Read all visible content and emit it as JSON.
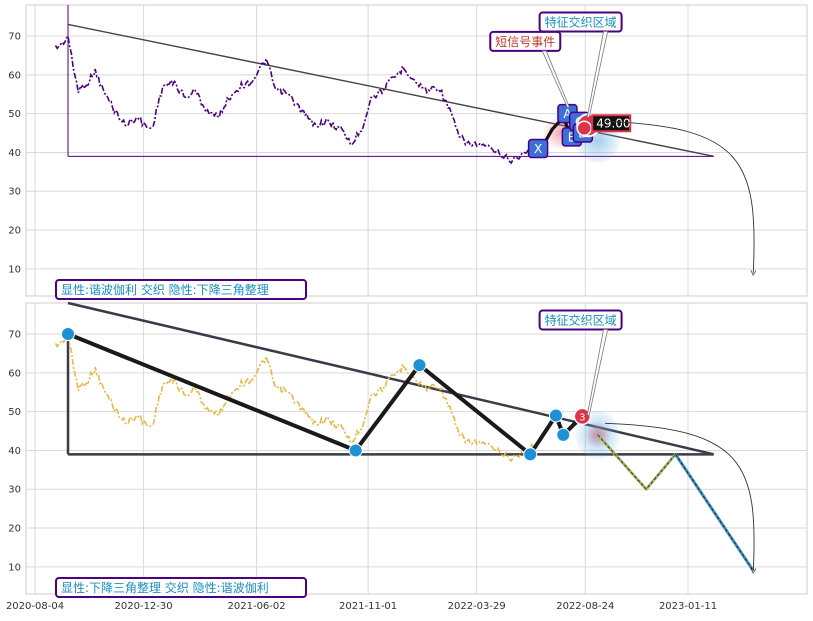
{
  "chart_data": [
    {
      "type": "line",
      "panel": "top",
      "title": "",
      "xlabel": "",
      "ylabel": "",
      "ylim": [
        3,
        78
      ],
      "yticks": [
        10,
        20,
        30,
        40,
        50,
        60,
        70
      ],
      "grid": true,
      "series": [
        {
          "name": "",
          "color": "#4b0082",
          "style": "dash-dot",
          "points": [
            [
              "2020-09-01",
              67
            ],
            [
              "2020-09-10",
              68
            ],
            [
              "2020-09-18",
              70
            ],
            [
              "2020-09-25",
              62
            ],
            [
              "2020-10-02",
              56
            ],
            [
              "2020-10-15",
              58
            ],
            [
              "2020-10-25",
              61
            ],
            [
              "2020-11-05",
              56
            ],
            [
              "2020-11-20",
              51
            ],
            [
              "2020-12-05",
              47
            ],
            [
              "2020-12-20",
              49
            ],
            [
              "2021-01-01",
              47
            ],
            [
              "2021-01-10",
              46
            ],
            [
              "2021-01-25",
              57
            ],
            [
              "2021-02-10",
              58
            ],
            [
              "2021-02-25",
              54
            ],
            [
              "2021-03-10",
              56
            ],
            [
              "2021-03-25",
              51
            ],
            [
              "2021-04-10",
              49
            ],
            [
              "2021-04-25",
              54
            ],
            [
              "2021-05-10",
              57
            ],
            [
              "2021-05-25",
              58
            ],
            [
              "2021-06-05",
              61
            ],
            [
              "2021-06-15",
              64
            ],
            [
              "2021-06-28",
              56
            ],
            [
              "2021-07-15",
              55
            ],
            [
              "2021-08-01",
              51
            ],
            [
              "2021-08-20",
              47
            ],
            [
              "2021-09-05",
              48
            ],
            [
              "2021-09-25",
              46
            ],
            [
              "2021-10-10",
              42
            ],
            [
              "2021-10-25",
              47
            ],
            [
              "2021-11-05",
              54
            ],
            [
              "2021-11-20",
              56
            ],
            [
              "2021-12-05",
              59
            ],
            [
              "2021-12-20",
              62
            ],
            [
              "2022-01-05",
              58
            ],
            [
              "2022-01-20",
              56
            ],
            [
              "2022-02-05",
              57
            ],
            [
              "2022-02-20",
              51
            ],
            [
              "2022-03-05",
              44
            ],
            [
              "2022-03-20",
              42
            ],
            [
              "2022-04-05",
              42
            ],
            [
              "2022-04-25",
              40
            ],
            [
              "2022-05-15",
              38
            ],
            [
              "2022-06-05",
              40
            ],
            [
              "2022-06-25",
              43
            ]
          ]
        },
        {
          "name": "",
          "color": "#111111",
          "style": "solid",
          "points": [
            [
              "2022-06-25",
              41
            ],
            [
              "2022-07-10",
              46
            ],
            [
              "2022-07-25",
              49
            ],
            [
              "2022-08-05",
              44
            ],
            [
              "2022-08-15",
              47
            ],
            [
              "2022-08-25",
              48
            ]
          ]
        }
      ],
      "trend_lines": [
        {
          "color": "#444444",
          "width": 1.4,
          "from": [
            "2020-09-18",
            73
          ],
          "to": [
            "2023-02-15",
            39
          ]
        },
        {
          "color": "#4b0082",
          "width": 1,
          "from": [
            "2020-09-18",
            39
          ],
          "to": [
            "2023-02-15",
            39
          ]
        },
        {
          "color": "#4b0082",
          "width": 1,
          "from": [
            "2020-09-18",
            39
          ],
          "to": [
            "2020-09-18",
            78
          ]
        }
      ],
      "markers": [
        {
          "label": "X",
          "x": "2022-06-20",
          "y": 41
        },
        {
          "label": "A",
          "x": "2022-07-30",
          "y": 50
        },
        {
          "label": "B",
          "x": "2022-08-05",
          "y": 44
        },
        {
          "label": "C",
          "x": "2022-08-15",
          "y": 48
        },
        {
          "label": "D",
          "x": "2022-08-20",
          "y": 45
        }
      ],
      "price_label": "49.00",
      "annotations": [
        {
          "text": "特征交织区域",
          "text_color": "#1a8fbf",
          "x": "2022-07-20",
          "y": 74
        },
        {
          "text": "短信号事件",
          "text_color": "#c0392b",
          "x": "2022-06-10",
          "y": 69
        }
      ],
      "footer_label": "显性:谐波伽利 交织 隐性:下降三角整理"
    },
    {
      "type": "line",
      "panel": "bottom",
      "title": "",
      "xlabel": "",
      "ylabel": "",
      "ylim": [
        3,
        78
      ],
      "yticks": [
        10,
        20,
        30,
        40,
        50,
        60,
        70
      ],
      "grid": true,
      "x_ticks": [
        "2020-08-04",
        "2020-12-30",
        "2021-06-02",
        "2021-11-01",
        "2022-03-29",
        "2022-08-24",
        "2023-01-11"
      ],
      "series": [
        {
          "name": "",
          "color": "#e8b84a",
          "style": "dash-dot",
          "points": [
            [
              "2020-09-01",
              67
            ],
            [
              "2020-09-10",
              68
            ],
            [
              "2020-09-18",
              70
            ],
            [
              "2020-09-25",
              62
            ],
            [
              "2020-10-02",
              56
            ],
            [
              "2020-10-15",
              58
            ],
            [
              "2020-10-25",
              61
            ],
            [
              "2020-11-05",
              56
            ],
            [
              "2020-11-20",
              51
            ],
            [
              "2020-12-05",
              47
            ],
            [
              "2020-12-20",
              49
            ],
            [
              "2021-01-01",
              47
            ],
            [
              "2021-01-10",
              46
            ],
            [
              "2021-01-25",
              57
            ],
            [
              "2021-02-10",
              58
            ],
            [
              "2021-02-25",
              54
            ],
            [
              "2021-03-10",
              56
            ],
            [
              "2021-03-25",
              51
            ],
            [
              "2021-04-10",
              49
            ],
            [
              "2021-04-25",
              54
            ],
            [
              "2021-05-10",
              57
            ],
            [
              "2021-05-25",
              58
            ],
            [
              "2021-06-05",
              61
            ],
            [
              "2021-06-15",
              64
            ],
            [
              "2021-06-28",
              56
            ],
            [
              "2021-07-15",
              55
            ],
            [
              "2021-08-01",
              51
            ],
            [
              "2021-08-20",
              47
            ],
            [
              "2021-09-05",
              48
            ],
            [
              "2021-09-25",
              46
            ],
            [
              "2021-10-10",
              42
            ],
            [
              "2021-10-25",
              47
            ],
            [
              "2021-11-05",
              54
            ],
            [
              "2021-11-20",
              56
            ],
            [
              "2021-12-05",
              59
            ],
            [
              "2021-12-20",
              62
            ],
            [
              "2022-01-05",
              58
            ],
            [
              "2022-01-20",
              56
            ],
            [
              "2022-02-05",
              57
            ],
            [
              "2022-02-20",
              51
            ],
            [
              "2022-03-05",
              44
            ],
            [
              "2022-03-20",
              42
            ],
            [
              "2022-04-05",
              42
            ],
            [
              "2022-04-25",
              40
            ],
            [
              "2022-05-15",
              38
            ],
            [
              "2022-06-05",
              40
            ],
            [
              "2022-06-25",
              43
            ]
          ]
        },
        {
          "name": "",
          "color": "#1a1a1a",
          "style": "solid",
          "points": [
            [
              "2020-09-18",
              70
            ],
            [
              "2021-10-15",
              40
            ],
            [
              "2022-01-10",
              62
            ],
            [
              "2022-06-10",
              39
            ],
            [
              "2022-07-15",
              49
            ],
            [
              "2022-07-25",
              44
            ],
            [
              "2022-08-10",
              47
            ],
            [
              "2022-08-20",
              48
            ]
          ]
        },
        {
          "name": "",
          "color": "#a8b86a",
          "style": "solid",
          "points": [
            [
              "2022-09-10",
              44
            ],
            [
              "2022-11-15",
              30
            ],
            [
              "2022-12-25",
              39
            ]
          ]
        },
        {
          "name": "",
          "color": "#3a8fc0",
          "style": "solid",
          "points": [
            [
              "2022-12-25",
              39
            ],
            [
              "2023-04-10",
              9
            ]
          ]
        }
      ],
      "pivots": [
        {
          "x": "2020-09-18",
          "y": 70
        },
        {
          "x": "2021-10-15",
          "y": 40
        },
        {
          "x": "2022-01-10",
          "y": 62
        },
        {
          "x": "2022-06-10",
          "y": 39
        },
        {
          "x": "2022-07-15",
          "y": 49
        },
        {
          "x": "2022-07-25",
          "y": 44
        }
      ],
      "trend_lines": [
        {
          "color": "#3a3a48",
          "width": 2.5,
          "from": [
            "2020-09-18",
            78
          ],
          "to": [
            "2023-02-15",
            39
          ]
        },
        {
          "color": "#3a3a48",
          "width": 2.5,
          "from": [
            "2020-09-18",
            39
          ],
          "to": [
            "2023-02-15",
            39
          ]
        },
        {
          "color": "#3a3a48",
          "width": 2.5,
          "from": [
            "2020-09-18",
            39
          ],
          "to": [
            "2020-09-18",
            70
          ]
        }
      ],
      "markers": [
        {
          "label": "3",
          "x": "2022-08-20",
          "y": 48
        }
      ],
      "annotations": [
        {
          "text": "特征交织区域",
          "text_color": "#1a8fbf",
          "x": "2022-07-20",
          "y": 74
        }
      ],
      "footer_label": "显性:下降三角整理 交织 隐性:谐波伽利"
    }
  ]
}
